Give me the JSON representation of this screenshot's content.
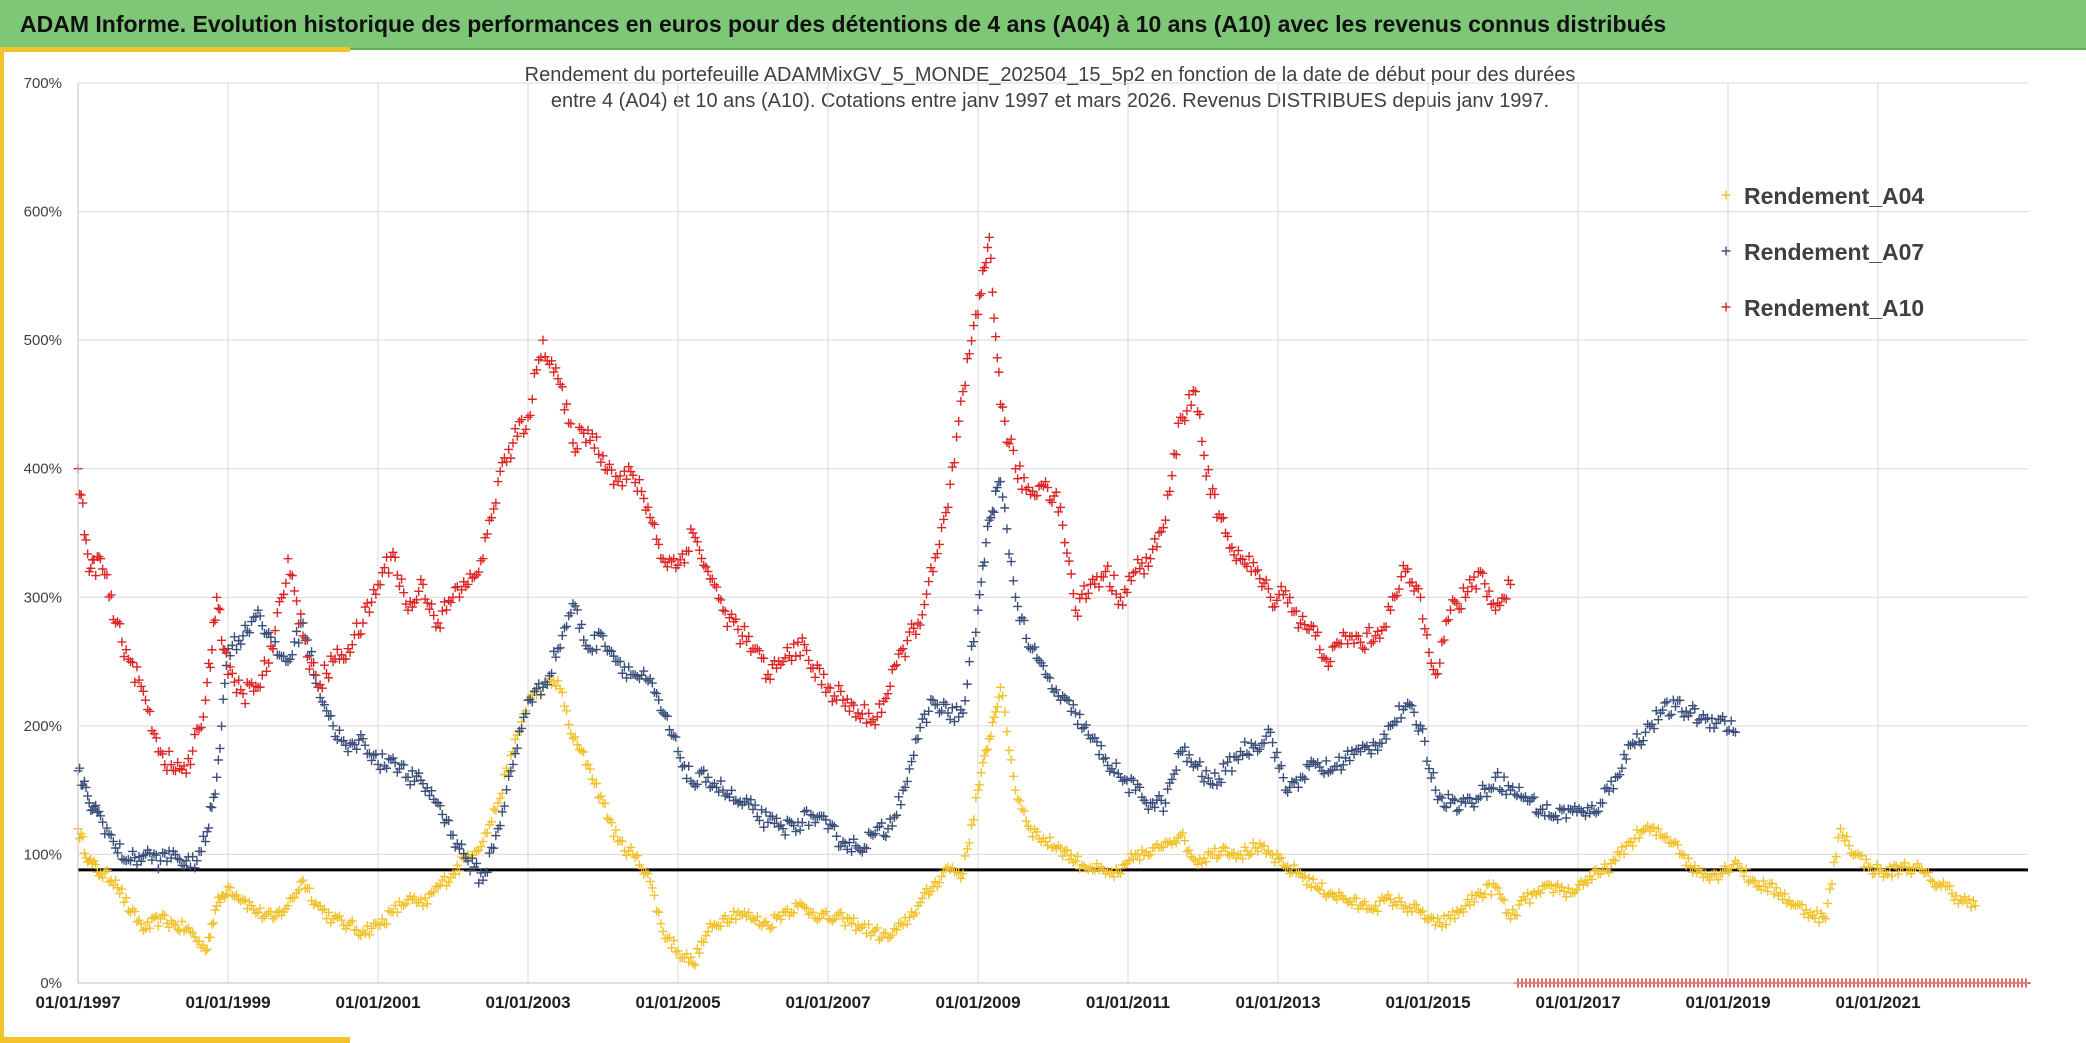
{
  "header": {
    "title": "ADAM Informe. Evolution historique des performances en euros pour des détentions de 4 ans (A04) à 10 ans (A10) avec les revenus connus distribués"
  },
  "colors": {
    "header_bg": "#7dc777",
    "accent": "#f2c22b",
    "A04": "#f2c22b",
    "A07": "#3a4f7a",
    "A10": "#dc2626",
    "reference_line": "#000000",
    "grid": "#d9d9d9"
  },
  "chart_data": {
    "type": "scatter",
    "title_line1": "Rendement du portefeuille ADAMMixGV_5_MONDE_202504_15_5p2 en fonction de la date de début pour des durées",
    "title_line2": "entre 4 (A04) et 10 ans (A10). Cotations entre janv 1997 et mars 2026. Revenus DISTRIBUES depuis janv 1997.",
    "xlabel": "",
    "ylabel": "",
    "xlim": [
      1997.0,
      2023.0
    ],
    "ylim": [
      0,
      7
    ],
    "y_ticks": [
      0,
      1,
      2,
      3,
      4,
      5,
      6,
      7
    ],
    "y_tick_labels": [
      "0%",
      "100%",
      "200%",
      "300%",
      "400%",
      "500%",
      "600%",
      "700%"
    ],
    "x_ticks": [
      1997,
      1999,
      2001,
      2003,
      2005,
      2007,
      2009,
      2011,
      2013,
      2015,
      2017,
      2019,
      2021
    ],
    "x_tick_labels": [
      "01/01/1997",
      "01/01/1999",
      "01/01/2001",
      "01/01/2003",
      "01/01/2005",
      "01/01/2007",
      "01/01/2009",
      "01/01/2011",
      "01/01/2013",
      "01/01/2015",
      "01/01/2017",
      "01/01/2019",
      "01/01/2021"
    ],
    "grid": true,
    "legend_position": "top-right",
    "reference_line_y": 0.88,
    "marker": "+",
    "series": [
      {
        "name": "Rendement_A04",
        "color": "#f2c22b",
        "x": [
          1997.0,
          1997.15,
          1997.3,
          1997.5,
          1997.7,
          1997.9,
          1998.1,
          1998.3,
          1998.5,
          1998.7,
          1998.85,
          1999.0,
          1999.2,
          1999.4,
          1999.6,
          1999.8,
          2000.0,
          2000.2,
          2000.4,
          2000.6,
          2000.8,
          2001.0,
          2001.2,
          2001.4,
          2001.6,
          2001.8,
          2002.0,
          2002.2,
          2002.4,
          2002.6,
          2002.8,
          2003.0,
          2003.2,
          2003.4,
          2003.6,
          2003.8,
          2004.0,
          2004.2,
          2004.4,
          2004.6,
          2004.8,
          2005.0,
          2005.2,
          2005.4,
          2005.6,
          2005.8,
          2006.0,
          2006.2,
          2006.4,
          2006.6,
          2006.8,
          2007.0,
          2007.2,
          2007.4,
          2007.6,
          2007.8,
          2008.0,
          2008.2,
          2008.4,
          2008.6,
          2008.8,
          2009.0,
          2009.15,
          2009.3,
          2009.5,
          2009.7,
          2009.9,
          2010.1,
          2010.3,
          2010.5,
          2010.7,
          2010.9,
          2011.1,
          2011.3,
          2011.5,
          2011.7,
          2011.9,
          2012.1,
          2012.3,
          2012.5,
          2012.7,
          2012.9,
          2013.1,
          2013.3,
          2013.5,
          2013.7,
          2013.9,
          2014.1,
          2014.3,
          2014.5,
          2014.7,
          2014.9,
          2015.1,
          2015.3,
          2015.5,
          2015.7,
          2015.9,
          2016.1,
          2016.3,
          2016.5,
          2016.7,
          2016.9,
          2017.1,
          2017.3,
          2017.5,
          2017.7,
          2017.9,
          2018.1,
          2018.3,
          2018.5,
          2018.7,
          2018.9,
          2019.1,
          2019.3,
          2019.5,
          2019.7,
          2019.9,
          2020.1,
          2020.3,
          2020.5,
          2020.7,
          2020.9,
          2021.1,
          2021.3,
          2021.5,
          2021.7,
          2021.9,
          2022.1,
          2022.3
        ],
        "y": [
          1.2,
          0.95,
          0.85,
          0.8,
          0.55,
          0.42,
          0.5,
          0.45,
          0.4,
          0.25,
          0.6,
          0.75,
          0.65,
          0.55,
          0.5,
          0.6,
          0.8,
          0.6,
          0.5,
          0.45,
          0.4,
          0.45,
          0.55,
          0.65,
          0.6,
          0.75,
          0.85,
          1.0,
          1.1,
          1.4,
          1.8,
          2.2,
          2.3,
          2.35,
          1.9,
          1.7,
          1.4,
          1.1,
          1.0,
          0.85,
          0.4,
          0.25,
          0.15,
          0.4,
          0.5,
          0.55,
          0.5,
          0.45,
          0.55,
          0.6,
          0.55,
          0.5,
          0.5,
          0.45,
          0.4,
          0.35,
          0.45,
          0.6,
          0.75,
          0.9,
          0.85,
          1.5,
          1.9,
          2.3,
          1.5,
          1.2,
          1.1,
          1.05,
          0.95,
          0.9,
          0.85,
          0.85,
          1.0,
          1.0,
          1.1,
          1.15,
          0.95,
          1.0,
          1.05,
          1.0,
          1.05,
          1.0,
          0.9,
          0.85,
          0.75,
          0.7,
          0.65,
          0.6,
          0.6,
          0.65,
          0.6,
          0.55,
          0.45,
          0.5,
          0.6,
          0.7,
          0.75,
          0.5,
          0.65,
          0.7,
          0.75,
          0.7,
          0.8,
          0.85,
          0.95,
          1.1,
          1.2,
          1.15,
          1.1,
          0.9,
          0.85,
          0.85,
          0.95,
          0.8,
          0.75,
          0.7,
          0.6,
          0.55,
          0.5,
          1.2,
          1.0,
          0.9,
          0.85,
          0.9,
          0.9,
          0.8,
          0.75,
          0.65,
          0.6
        ],
        "jitter": 0.05
      },
      {
        "name": "Rendement_A07",
        "color": "#3a4f7a",
        "x": [
          1997.0,
          1997.15,
          1997.3,
          1997.5,
          1997.7,
          1997.9,
          1998.1,
          1998.3,
          1998.5,
          1998.7,
          1998.85,
          1999.0,
          1999.2,
          1999.4,
          1999.6,
          1999.8,
          2000.0,
          2000.2,
          2000.4,
          2000.6,
          2000.8,
          2001.0,
          2001.2,
          2001.4,
          2001.6,
          2001.8,
          2002.0,
          2002.2,
          2002.4,
          2002.6,
          2002.8,
          2003.0,
          2003.2,
          2003.4,
          2003.6,
          2003.8,
          2004.0,
          2004.2,
          2004.4,
          2004.6,
          2004.8,
          2005.0,
          2005.2,
          2005.4,
          2005.6,
          2005.8,
          2006.0,
          2006.2,
          2006.4,
          2006.6,
          2006.8,
          2007.0,
          2007.2,
          2007.4,
          2007.6,
          2007.8,
          2008.0,
          2008.2,
          2008.4,
          2008.6,
          2008.8,
          2009.0,
          2009.15,
          2009.3,
          2009.5,
          2009.7,
          2009.9,
          2010.1,
          2010.3,
          2010.5,
          2010.7,
          2010.9,
          2011.1,
          2011.3,
          2011.5,
          2011.7,
          2011.9,
          2012.1,
          2012.3,
          2012.5,
          2012.7,
          2012.9,
          2013.1,
          2013.3,
          2013.5,
          2013.7,
          2013.9,
          2014.1,
          2014.3,
          2014.5,
          2014.7,
          2014.9,
          2015.1,
          2015.3,
          2015.5,
          2015.7,
          2015.9,
          2016.1,
          2016.3,
          2016.5,
          2016.7,
          2016.9,
          2017.1,
          2017.3,
          2017.5,
          2017.7,
          2017.9,
          2018.1,
          2018.3,
          2018.5,
          2018.7,
          2018.9,
          2019.1
        ],
        "y": [
          1.65,
          1.4,
          1.3,
          1.05,
          0.95,
          1.0,
          0.95,
          1.0,
          0.9,
          1.1,
          1.6,
          2.6,
          2.7,
          2.9,
          2.6,
          2.5,
          2.8,
          2.3,
          2.0,
          1.8,
          1.9,
          1.7,
          1.75,
          1.6,
          1.55,
          1.4,
          1.15,
          0.95,
          0.8,
          1.2,
          1.7,
          2.2,
          2.3,
          2.6,
          2.95,
          2.6,
          2.7,
          2.5,
          2.4,
          2.35,
          2.1,
          1.8,
          1.55,
          1.6,
          1.5,
          1.4,
          1.35,
          1.25,
          1.2,
          1.25,
          1.3,
          1.2,
          1.1,
          1.05,
          1.15,
          1.2,
          1.5,
          1.9,
          2.2,
          2.1,
          2.1,
          2.9,
          3.6,
          3.9,
          3.0,
          2.6,
          2.4,
          2.2,
          2.1,
          1.9,
          1.75,
          1.6,
          1.5,
          1.4,
          1.4,
          1.8,
          1.7,
          1.55,
          1.65,
          1.8,
          1.85,
          1.95,
          1.5,
          1.6,
          1.7,
          1.65,
          1.75,
          1.8,
          1.85,
          2.0,
          2.15,
          2.0,
          1.5,
          1.4,
          1.4,
          1.45,
          1.6,
          1.5,
          1.45,
          1.35,
          1.3,
          1.35,
          1.3,
          1.4,
          1.6,
          1.85,
          1.95,
          2.1,
          2.15,
          2.1,
          2.05,
          2.05,
          1.95
        ],
        "jitter": 0.07
      },
      {
        "name": "Rendement_A10",
        "color": "#dc2626",
        "x": [
          1997.0,
          1997.15,
          1997.3,
          1997.5,
          1997.7,
          1997.9,
          1998.1,
          1998.3,
          1998.5,
          1998.7,
          1998.85,
          1999.0,
          1999.2,
          1999.4,
          1999.6,
          1999.8,
          2000.0,
          2000.2,
          2000.4,
          2000.6,
          2000.8,
          2001.0,
          2001.2,
          2001.4,
          2001.6,
          2001.8,
          2002.0,
          2002.2,
          2002.4,
          2002.6,
          2002.8,
          2003.0,
          2003.2,
          2003.4,
          2003.6,
          2003.8,
          2004.0,
          2004.2,
          2004.4,
          2004.6,
          2004.8,
          2005.0,
          2005.2,
          2005.4,
          2005.6,
          2005.8,
          2006.0,
          2006.2,
          2006.4,
          2006.6,
          2006.8,
          2007.0,
          2007.2,
          2007.4,
          2007.6,
          2007.8,
          2008.0,
          2008.2,
          2008.4,
          2008.6,
          2008.8,
          2009.0,
          2009.15,
          2009.3,
          2009.5,
          2009.7,
          2009.9,
          2010.1,
          2010.3,
          2010.5,
          2010.7,
          2010.9,
          2011.1,
          2011.3,
          2011.5,
          2011.7,
          2011.9,
          2012.1,
          2012.3,
          2012.5,
          2012.7,
          2012.9,
          2013.1,
          2013.3,
          2013.5,
          2013.7,
          2013.9,
          2014.1,
          2014.3,
          2014.5,
          2014.7,
          2014.9,
          2015.1,
          2015.3,
          2015.5,
          2015.7,
          2015.9,
          2016.1
        ],
        "y": [
          4.0,
          3.2,
          3.3,
          2.8,
          2.5,
          2.2,
          1.8,
          1.65,
          1.7,
          2.2,
          3.0,
          2.4,
          2.25,
          2.3,
          2.6,
          3.3,
          2.7,
          2.3,
          2.5,
          2.6,
          2.8,
          3.1,
          3.35,
          2.9,
          3.1,
          2.8,
          3.0,
          3.1,
          3.3,
          3.9,
          4.2,
          4.4,
          5.0,
          4.7,
          4.2,
          4.3,
          4.1,
          3.9,
          3.95,
          3.7,
          3.3,
          3.25,
          3.5,
          3.2,
          2.9,
          2.75,
          2.6,
          2.4,
          2.5,
          2.65,
          2.45,
          2.3,
          2.2,
          2.1,
          2.05,
          2.25,
          2.6,
          2.8,
          3.2,
          3.7,
          4.6,
          5.2,
          5.8,
          4.5,
          4.0,
          3.8,
          3.9,
          3.7,
          2.9,
          3.1,
          3.2,
          3.0,
          3.2,
          3.3,
          3.6,
          4.4,
          4.6,
          3.8,
          3.5,
          3.3,
          3.2,
          3.0,
          3.05,
          2.8,
          2.7,
          2.5,
          2.7,
          2.65,
          2.7,
          2.9,
          3.2,
          3.0,
          2.4,
          2.9,
          3.0,
          3.2,
          2.9,
          3.1
        ],
        "jitter": 0.09
      }
    ],
    "baseline_markers": {
      "x_from": 2016.2,
      "x_to": 2023.0,
      "y": 0.0,
      "color": "#dc2626"
    }
  }
}
